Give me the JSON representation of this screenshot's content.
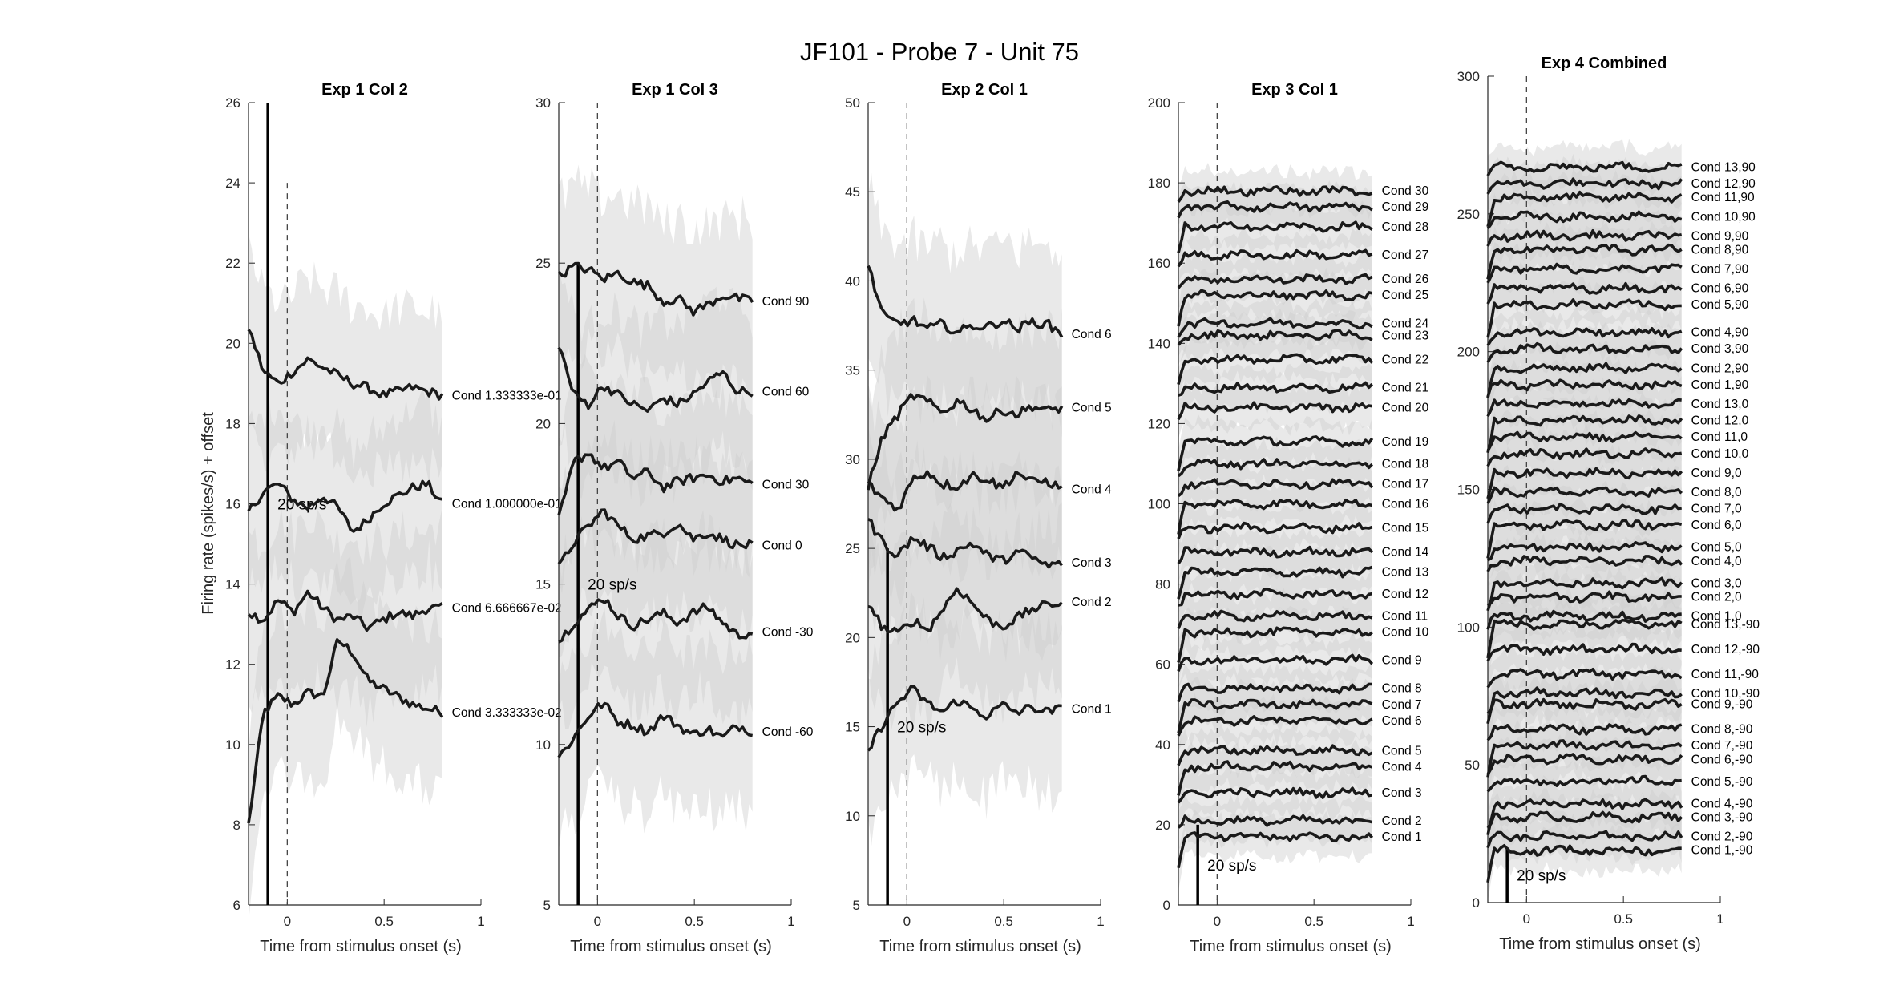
{
  "figure": {
    "suptitle": "JF101 - Probe 7 - Unit 75"
  },
  "chart_data": [
    {
      "type": "line",
      "title": "Exp 1 Col 2",
      "xlabel": "Time from stimulus onset (s)",
      "ylabel": "Firing rate (spikes/s) + offset",
      "xlim": [
        -0.2,
        1
      ],
      "ylim": [
        6,
        26
      ],
      "xticks": [
        "0",
        "0.5",
        "1"
      ],
      "yticks": [
        "6",
        "8",
        "10",
        "12",
        "14",
        "16",
        "18",
        "20",
        "22",
        "24",
        "26"
      ],
      "scale_bar": {
        "label": "20 sp/s",
        "label_y": 16,
        "bar_from": 6,
        "bar_to": 26
      },
      "series": [
        {
          "name": "Cond 3.333333e-02",
          "values": [
            8.0,
            10.8,
            11.2,
            11.0,
            11.3,
            11.2,
            12.6,
            12.3,
            11.6,
            11.4,
            11.2,
            11.0,
            10.9,
            10.8
          ]
        },
        {
          "name": "Cond 6.666667e-02",
          "values": [
            13.3,
            13.1,
            13.6,
            13.3,
            13.8,
            13.4,
            13.1,
            13.2,
            12.9,
            13.1,
            13.3,
            13.2,
            13.4,
            13.4
          ]
        },
        {
          "name": "Cond 1.000000e-01",
          "values": [
            15.8,
            16.3,
            16.5,
            16.1,
            15.9,
            16.2,
            15.9,
            15.3,
            15.6,
            16.0,
            16.2,
            16.4,
            16.5,
            16.0
          ]
        },
        {
          "name": "Cond 1.333333e-01",
          "values": [
            20.4,
            19.3,
            19.0,
            19.3,
            19.6,
            19.4,
            19.2,
            19.0,
            18.9,
            18.7,
            18.8,
            18.9,
            18.8,
            18.7
          ]
        }
      ]
    },
    {
      "type": "line",
      "title": "Exp 1 Col 3",
      "xlim": [
        -0.2,
        1
      ],
      "ylim": [
        5,
        30
      ],
      "xticks": [
        "0",
        "0.5",
        "1"
      ],
      "yticks": [
        "5",
        "10",
        "15",
        "20",
        "25",
        "30"
      ],
      "scale_bar": {
        "label": "20 sp/s",
        "label_y": 15,
        "bar_from": 5,
        "bar_to": 25
      },
      "series": [
        {
          "name": "Cond -60",
          "values": [
            9.6,
            10.2,
            10.9,
            11.3,
            10.7,
            10.6,
            10.4,
            10.9,
            10.6,
            10.3,
            10.5,
            10.2,
            10.6,
            10.4
          ]
        },
        {
          "name": "Cond -30",
          "values": [
            13.2,
            13.8,
            14.2,
            14.6,
            14.0,
            13.7,
            13.9,
            14.1,
            13.8,
            14.1,
            14.3,
            13.8,
            13.4,
            13.5
          ]
        },
        {
          "name": "Cond 0",
          "values": [
            15.5,
            16.3,
            16.8,
            17.3,
            16.8,
            16.4,
            16.5,
            16.6,
            16.9,
            16.4,
            16.6,
            16.4,
            16.2,
            16.2
          ]
        },
        {
          "name": "Cond 30",
          "values": [
            17.0,
            18.8,
            19.1,
            18.6,
            18.8,
            18.3,
            18.5,
            18.0,
            18.2,
            18.3,
            18.4,
            18.2,
            18.3,
            18.1
          ]
        },
        {
          "name": "Cond 60",
          "values": [
            22.5,
            20.9,
            20.6,
            21.2,
            20.9,
            20.6,
            20.4,
            20.8,
            20.6,
            20.9,
            21.3,
            21.6,
            21.0,
            21.0
          ]
        },
        {
          "name": "Cond 90",
          "values": [
            24.6,
            24.9,
            24.8,
            24.5,
            24.7,
            24.4,
            24.3,
            23.8,
            23.9,
            23.5,
            23.7,
            24.0,
            23.9,
            23.8
          ]
        }
      ]
    },
    {
      "type": "line",
      "title": "Exp 2 Col 1",
      "xlim": [
        -0.2,
        1
      ],
      "ylim": [
        5,
        50
      ],
      "xticks": [
        "0",
        "0.5",
        "1"
      ],
      "yticks": [
        "5",
        "10",
        "15",
        "20",
        "25",
        "30",
        "35",
        "40",
        "45",
        "50"
      ],
      "scale_bar": {
        "label": "20 sp/s",
        "label_y": 15,
        "bar_from": 5,
        "bar_to": 25
      },
      "series": [
        {
          "name": "Cond 1",
          "values": [
            13.6,
            15.2,
            16.4,
            17.1,
            16.3,
            15.8,
            16.5,
            16.0,
            15.6,
            16.2,
            15.8,
            16.1,
            15.8,
            16.0
          ]
        },
        {
          "name": "Cond 2",
          "values": [
            22.0,
            20.5,
            20.2,
            21.0,
            20.4,
            21.6,
            22.8,
            21.9,
            21.0,
            20.6,
            21.1,
            21.6,
            21.8,
            22.0
          ]
        },
        {
          "name": "Cond 3",
          "values": [
            26.6,
            25.3,
            24.6,
            25.6,
            25.1,
            24.5,
            24.9,
            25.3,
            24.6,
            24.3,
            24.8,
            24.5,
            24.0,
            24.2
          ]
        },
        {
          "name": "Cond 4",
          "values": [
            28.6,
            27.8,
            27.2,
            28.9,
            29.3,
            28.6,
            28.5,
            29.1,
            28.9,
            28.4,
            29.3,
            28.7,
            28.8,
            28.3
          ]
        },
        {
          "name": "Cond 5",
          "values": [
            28.5,
            31.3,
            32.5,
            33.6,
            33.2,
            32.6,
            33.3,
            32.8,
            32.2,
            32.8,
            32.5,
            33.0,
            32.7,
            32.9
          ]
        },
        {
          "name": "Cond 6",
          "values": [
            40.9,
            38.0,
            37.6,
            37.8,
            37.3,
            37.6,
            37.1,
            37.5,
            37.4,
            37.8,
            37.3,
            37.7,
            37.6,
            37.0
          ]
        }
      ]
    },
    {
      "type": "line",
      "title": "Exp 3 Col 1",
      "xlim": [
        -0.2,
        1
      ],
      "ylim": [
        0,
        200
      ],
      "xticks": [
        "0",
        "0.5",
        "1"
      ],
      "yticks": [
        "0",
        "20",
        "40",
        "60",
        "80",
        "100",
        "120",
        "140",
        "160",
        "180",
        "200"
      ],
      "scale_bar": {
        "label": "20 sp/s",
        "label_y": 10,
        "bar_from": 0,
        "bar_to": 20
      },
      "series": [
        {
          "name": "Cond 1",
          "value": 17
        },
        {
          "name": "Cond 2",
          "value": 21
        },
        {
          "name": "Cond 3",
          "value": 28
        },
        {
          "name": "Cond 4",
          "value": 34.5
        },
        {
          "name": "Cond 5",
          "value": 38.5
        },
        {
          "name": "Cond 6",
          "value": 46
        },
        {
          "name": "Cond 7",
          "value": 50
        },
        {
          "name": "Cond 8",
          "value": 54
        },
        {
          "name": "Cond 9",
          "value": 61
        },
        {
          "name": "Cond 10",
          "value": 68
        },
        {
          "name": "Cond 11",
          "value": 72
        },
        {
          "name": "Cond 12",
          "value": 77.5
        },
        {
          "name": "Cond 13",
          "value": 83
        },
        {
          "name": "Cond 14",
          "value": 88
        },
        {
          "name": "Cond 15",
          "value": 94
        },
        {
          "name": "Cond 16",
          "value": 100
        },
        {
          "name": "Cond 17",
          "value": 105
        },
        {
          "name": "Cond 18",
          "value": 110
        },
        {
          "name": "Cond 19",
          "value": 115.5
        },
        {
          "name": "Cond 20",
          "value": 124
        },
        {
          "name": "Cond 21",
          "value": 129
        },
        {
          "name": "Cond 22",
          "value": 136
        },
        {
          "name": "Cond 23",
          "value": 142
        },
        {
          "name": "Cond 24",
          "value": 145
        },
        {
          "name": "Cond 25",
          "value": 152
        },
        {
          "name": "Cond 26",
          "value": 156
        },
        {
          "name": "Cond 27",
          "value": 162
        },
        {
          "name": "Cond 28",
          "value": 169
        },
        {
          "name": "Cond 29",
          "value": 174
        },
        {
          "name": "Cond 30",
          "value": 178
        }
      ]
    },
    {
      "type": "line",
      "title": "Exp 4 Combined",
      "xlim": [
        -0.2,
        1
      ],
      "ylim": [
        0,
        300
      ],
      "xticks": [
        "0",
        "0.5",
        "1"
      ],
      "yticks": [
        "0",
        "50",
        "100",
        "150",
        "200",
        "250",
        "300"
      ],
      "scale_bar": {
        "label": "20 sp/s",
        "label_y": 10,
        "bar_from": 0,
        "bar_to": 20
      },
      "series": [
        {
          "name": "Cond 1,-90",
          "value": 19
        },
        {
          "name": "Cond 2,-90",
          "value": 24
        },
        {
          "name": "Cond 3,-90",
          "value": 31
        },
        {
          "name": "Cond 4,-90",
          "value": 36
        },
        {
          "name": "Cond 5,-90",
          "value": 44
        },
        {
          "name": "Cond 6,-90",
          "value": 52
        },
        {
          "name": "Cond 7,-90",
          "value": 57
        },
        {
          "name": "Cond 8,-90",
          "value": 63
        },
        {
          "name": "Cond 9,-90",
          "value": 72
        },
        {
          "name": "Cond 10,-90",
          "value": 76
        },
        {
          "name": "Cond 11,-90",
          "value": 83
        },
        {
          "name": "Cond 12,-90",
          "value": 92
        },
        {
          "name": "Cond 13,-90",
          "value": 101
        },
        {
          "name": "Cond 1,0",
          "value": 104
        },
        {
          "name": "Cond 2,0",
          "value": 111
        },
        {
          "name": "Cond 3,0",
          "value": 116
        },
        {
          "name": "Cond 4,0",
          "value": 124
        },
        {
          "name": "Cond 5,0",
          "value": 129
        },
        {
          "name": "Cond 6,0",
          "value": 137
        },
        {
          "name": "Cond 7,0",
          "value": 143
        },
        {
          "name": "Cond 8,0",
          "value": 149
        },
        {
          "name": "Cond 9,0",
          "value": 156
        },
        {
          "name": "Cond 10,0",
          "value": 163
        },
        {
          "name": "Cond 11,0",
          "value": 169
        },
        {
          "name": "Cond 12,0",
          "value": 175
        },
        {
          "name": "Cond 13,0",
          "value": 181
        },
        {
          "name": "Cond 1,90",
          "value": 188
        },
        {
          "name": "Cond 2,90",
          "value": 194
        },
        {
          "name": "Cond 3,90",
          "value": 201
        },
        {
          "name": "Cond 4,90",
          "value": 207
        },
        {
          "name": "Cond 5,90",
          "value": 217
        },
        {
          "name": "Cond 6,90",
          "value": 223
        },
        {
          "name": "Cond 7,90",
          "value": 230
        },
        {
          "name": "Cond 8,90",
          "value": 237
        },
        {
          "name": "Cond 9,90",
          "value": 242
        },
        {
          "name": "Cond 10,90",
          "value": 249
        },
        {
          "name": "Cond 11,90",
          "value": 256
        },
        {
          "name": "Cond 12,90",
          "value": 261
        },
        {
          "name": "Cond 13,90",
          "value": 267
        }
      ]
    }
  ]
}
